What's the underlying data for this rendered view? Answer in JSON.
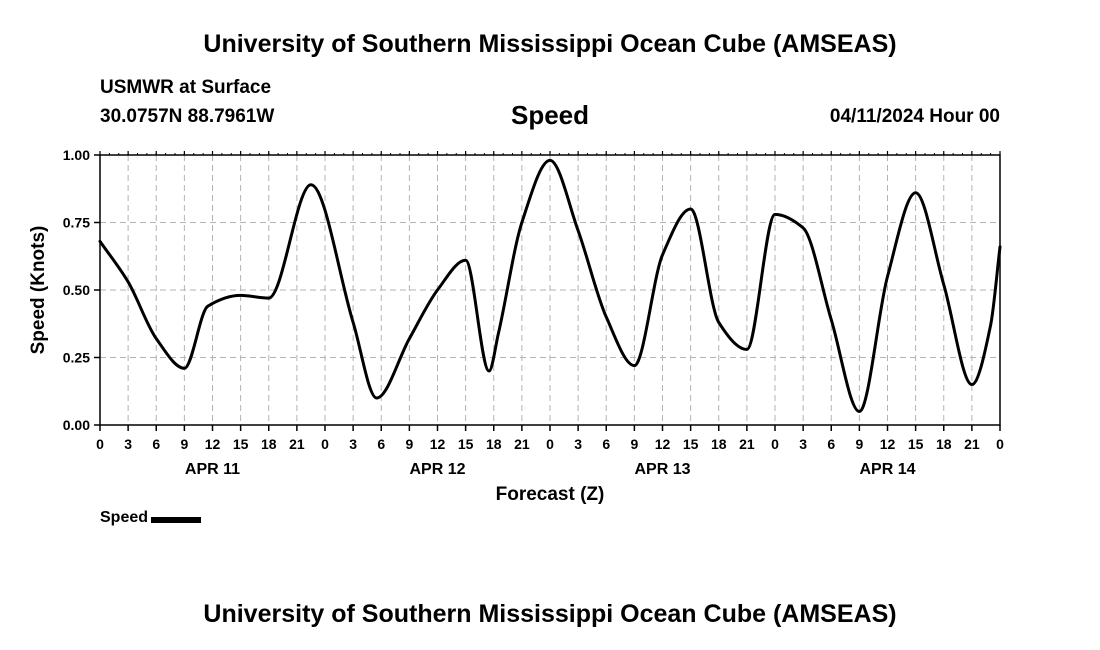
{
  "header": {
    "title": "University of Southern Mississippi Ocean Cube (AMSEAS)",
    "station": "USMWR at Surface",
    "coords": "30.0757N  88.7961W",
    "variable": "Speed",
    "datetime": "04/11/2024 Hour 00"
  },
  "footer": {
    "title": "University of Southern Mississippi Ocean Cube (AMSEAS)"
  },
  "legend": {
    "label": "Speed",
    "color": "#000000"
  },
  "chart_data": {
    "type": "line",
    "title": "Speed",
    "xlabel": "Forecast (Z)",
    "ylabel": "Speed (Knots)",
    "xlim": [
      0,
      96
    ],
    "ylim": [
      0,
      1
    ],
    "grid": true,
    "x_tick_step_hours": 3,
    "x_tick_labels": [
      "0",
      "3",
      "6",
      "9",
      "12",
      "15",
      "18",
      "21",
      "0",
      "3",
      "6",
      "9",
      "12",
      "15",
      "18",
      "21",
      "0",
      "3",
      "6",
      "9",
      "12",
      "15",
      "18",
      "21",
      "0",
      "3",
      "6",
      "9",
      "12",
      "15",
      "18",
      "21",
      "0"
    ],
    "y_ticks": [
      0,
      0.25,
      0.5,
      0.75,
      1.0
    ],
    "y_tick_labels": [
      "0.00",
      "0.25",
      "0.50",
      "0.75",
      "1.00"
    ],
    "date_labels": [
      {
        "hour": 12,
        "label": "APR 11"
      },
      {
        "hour": 36,
        "label": "APR 12"
      },
      {
        "hour": 60,
        "label": "APR 13"
      },
      {
        "hour": 84,
        "label": "APR 14"
      }
    ],
    "series": [
      {
        "name": "Speed",
        "x": [
          0,
          3,
          6,
          9,
          11.5,
          15,
          18,
          22.5,
          27,
          29.5,
          33,
          36,
          39,
          41.5,
          42.5,
          45,
          48,
          51,
          54,
          57,
          60,
          63,
          66,
          69,
          72,
          75,
          78,
          81,
          84,
          87,
          90,
          93,
          95,
          96
        ],
        "values": [
          0.68,
          0.53,
          0.32,
          0.21,
          0.44,
          0.48,
          0.47,
          0.89,
          0.38,
          0.1,
          0.32,
          0.5,
          0.61,
          0.2,
          0.34,
          0.75,
          0.98,
          0.72,
          0.4,
          0.22,
          0.63,
          0.8,
          0.38,
          0.28,
          0.78,
          0.73,
          0.39,
          0.05,
          0.55,
          0.86,
          0.52,
          0.15,
          0.37,
          0.66
        ]
      }
    ]
  }
}
